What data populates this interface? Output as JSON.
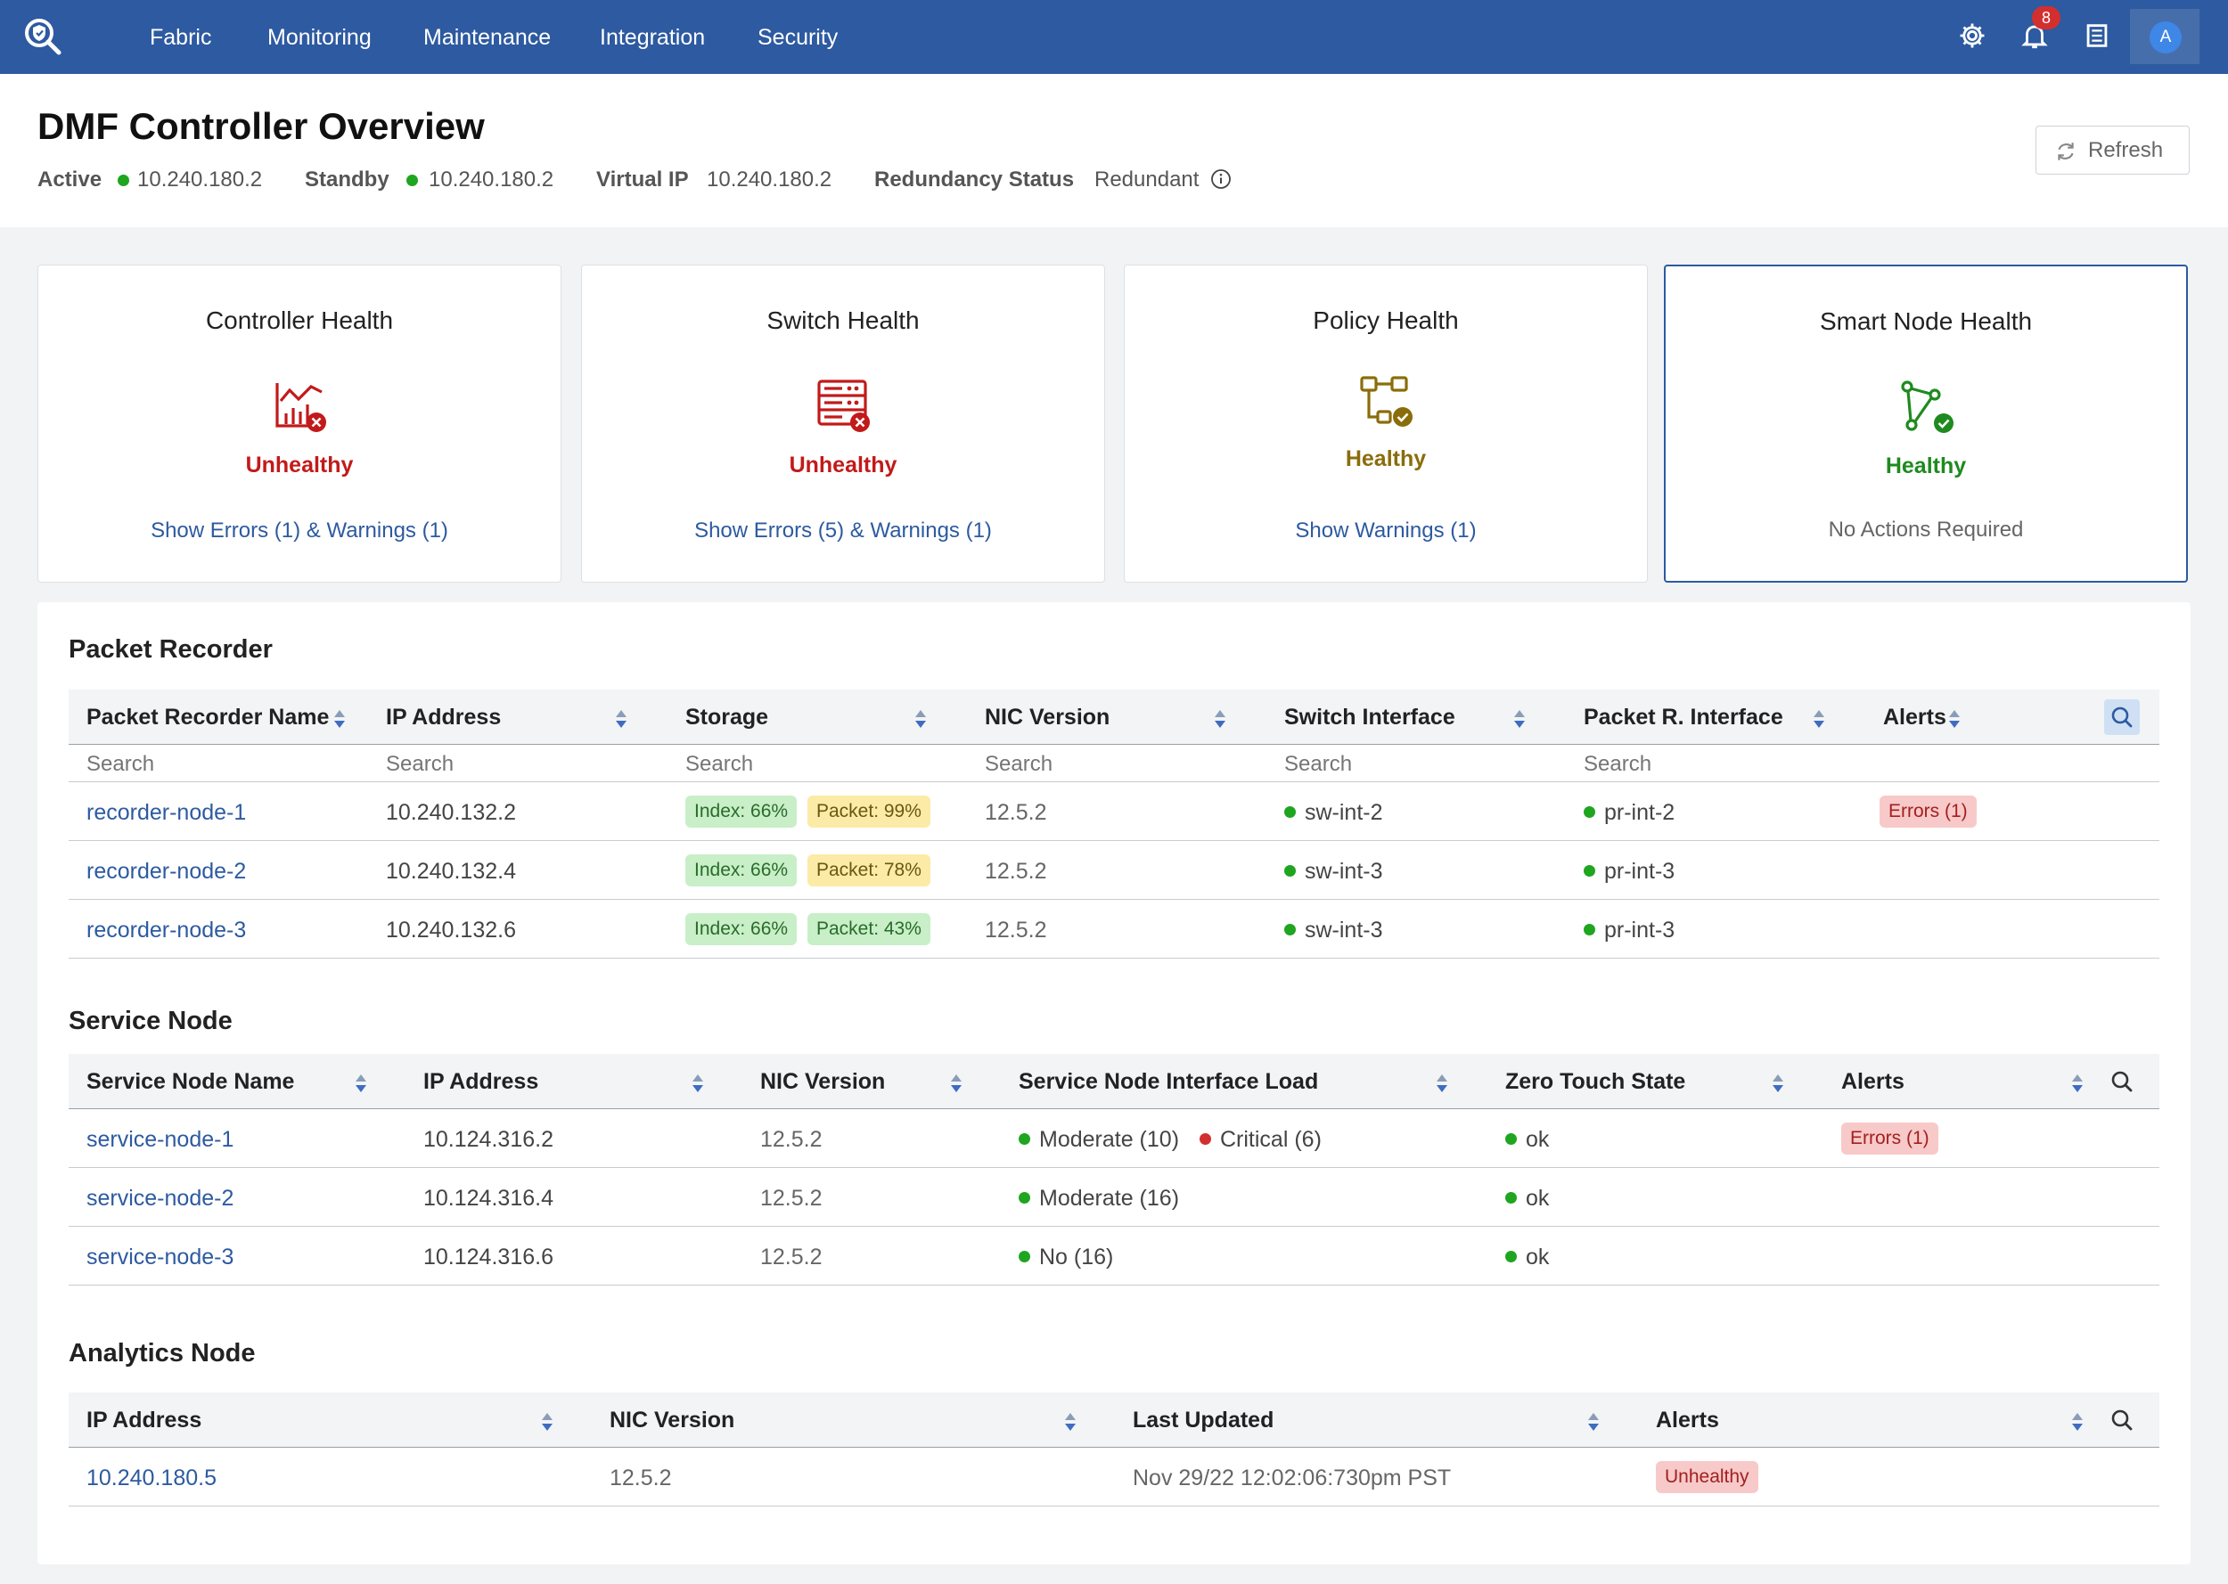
{
  "nav": {
    "items": [
      "Fabric",
      "Monitoring",
      "Maintenance",
      "Integration",
      "Security"
    ],
    "notification_count": "8",
    "avatar_initial": "A",
    "icons": [
      "settings-gear-icon",
      "bell-icon",
      "document-list-icon"
    ]
  },
  "header": {
    "title": "DMF Controller Overview",
    "active_label": "Active",
    "active_ip": "10.240.180.2",
    "standby_label": "Standby",
    "standby_ip": "10.240.180.2",
    "virtual_ip_label": "Virtual IP",
    "virtual_ip": "10.240.180.2",
    "redundancy_label": "Redundancy Status",
    "redundancy_value": "Redundant",
    "refresh_label": "Refresh"
  },
  "colors": {
    "brand": "#2d5aa0",
    "unhealthy": "#c21a1a",
    "healthy_green": "#1f8a1f",
    "healthy_gold": "#8a6d0b"
  },
  "health_cards": [
    {
      "title": "Controller Health",
      "status": "Unhealthy",
      "action": "Show Errors (1) & Warnings (1)",
      "icon": "chart-error-icon"
    },
    {
      "title": "Switch Health",
      "status": "Unhealthy",
      "action": "Show Errors (5) & Warnings (1)",
      "icon": "server-error-icon"
    },
    {
      "title": "Policy Health",
      "status": "Healthy",
      "action": "Show Warnings (1)",
      "icon": "policy-check-icon"
    },
    {
      "title": "Smart Node Health",
      "status": "Healthy",
      "note": "No Actions Required",
      "icon": "node-graph-check-icon"
    }
  ],
  "packet_recorder": {
    "title": "Packet Recorder",
    "columns": [
      "Packet Recorder Name",
      "IP Address",
      "Storage",
      "NIC Version",
      "Switch Interface",
      "Packet R. Interface",
      "Alerts"
    ],
    "search_placeholder": "Search",
    "rows": [
      {
        "name": "recorder-node-1",
        "ip": "10.240.132.2",
        "index": "Index: 66%",
        "packet": "Packet: 99%",
        "nic": "12.5.2",
        "switch_if": "sw-int-2",
        "pr_if": "pr-int-2",
        "alert": "Errors (1)"
      },
      {
        "name": "recorder-node-2",
        "ip": "10.240.132.4",
        "index": "Index: 66%",
        "packet": "Packet: 78%",
        "nic": "12.5.2",
        "switch_if": "sw-int-3",
        "pr_if": "pr-int-3",
        "alert": ""
      },
      {
        "name": "recorder-node-3",
        "ip": "10.240.132.6",
        "index": "Index: 66%",
        "packet": "Packet: 43%",
        "nic": "12.5.2",
        "switch_if": "sw-int-3",
        "pr_if": "pr-int-3",
        "alert": ""
      }
    ]
  },
  "service_node": {
    "title": "Service Node",
    "columns": [
      "Service Node Name",
      "IP Address",
      "NIC Version",
      "Service Node Interface Load",
      "Zero Touch State",
      "Alerts"
    ],
    "rows": [
      {
        "name": "service-node-1",
        "ip": "10.124.316.2",
        "nic": "12.5.2",
        "load1": "Moderate (10)",
        "load2": "Critical (6)",
        "zt": "ok",
        "alert": "Errors (1)"
      },
      {
        "name": "service-node-2",
        "ip": "10.124.316.4",
        "nic": "12.5.2",
        "load1": "Moderate (16)",
        "load2": "",
        "zt": "ok",
        "alert": ""
      },
      {
        "name": "service-node-3",
        "ip": "10.124.316.6",
        "nic": "12.5.2",
        "load1": "No (16)",
        "load2": "",
        "zt": "ok",
        "alert": ""
      }
    ]
  },
  "analytics_node": {
    "title": "Analytics Node",
    "columns": [
      "IP Address",
      "NIC Version",
      "Last Updated",
      "Alerts"
    ],
    "rows": [
      {
        "ip": "10.240.180.5",
        "nic": "12.5.2",
        "updated": "Nov 29/22 12:02:06:730pm PST",
        "alert": "Unhealthy"
      }
    ]
  }
}
